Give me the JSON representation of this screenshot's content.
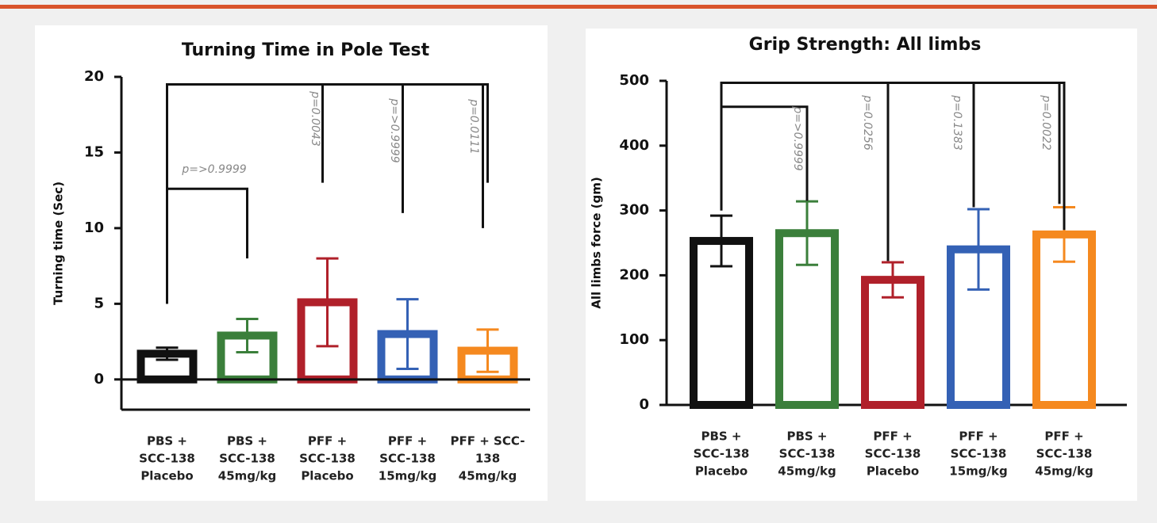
{
  "chart_data": [
    {
      "type": "bar",
      "title": "Turning Time in Pole Test",
      "y_label": "Turning time (Sec)",
      "categories": [
        [
          "PBS +",
          "SCC-138",
          "Placebo"
        ],
        [
          "PBS +",
          "SCC-138",
          "45mg/kg"
        ],
        [
          "PFF +",
          "SCC-138",
          "Placebo"
        ],
        [
          "PFF +",
          "SCC-138",
          "15mg/kg"
        ],
        [
          "PFF + SCC-",
          "138",
          "45mg/kg"
        ]
      ],
      "values": [
        1.7,
        2.9,
        5.1,
        3.0,
        1.9
      ],
      "errors": [
        0.4,
        1.1,
        2.9,
        2.3,
        1.4
      ],
      "colors": [
        "#111111",
        "#3b7f3b",
        "#b0202a",
        "#3461b5",
        "#f5891f"
      ],
      "ylim": [
        -2,
        20
      ],
      "yticks": [
        0,
        5,
        10,
        15,
        20
      ],
      "annotations": [
        "p=>0.9999",
        "p=0.0043",
        "p=>0.9999",
        "p=0.0111"
      ]
    },
    {
      "type": "bar",
      "title": "Grip Strength: All limbs",
      "y_label": "All limbs force (gm)",
      "categories": [
        [
          "PBS +",
          "SCC-138",
          "Placebo"
        ],
        [
          "PBS +",
          "SCC-138",
          "45mg/kg"
        ],
        [
          "PFF +",
          "SCC-138",
          "Placebo"
        ],
        [
          "PFF +",
          "SCC-138",
          "15mg/kg"
        ],
        [
          "PFF +",
          "SCC-138",
          "45mg/kg"
        ]
      ],
      "values": [
        253,
        265,
        193,
        240,
        263
      ],
      "errors": [
        39,
        49,
        27,
        62,
        42
      ],
      "colors": [
        "#111111",
        "#3b7f3b",
        "#b0202a",
        "#3461b5",
        "#f5891f"
      ],
      "ylim": [
        0,
        500
      ],
      "yticks": [
        0,
        100,
        200,
        300,
        400,
        500
      ],
      "annotations": [
        "p=>0.9999",
        "p=0.0256",
        "p=0.1383",
        "p=0.0022"
      ]
    }
  ]
}
